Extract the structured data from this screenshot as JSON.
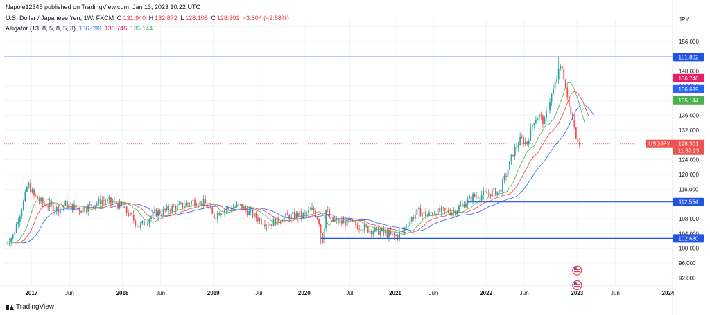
{
  "header": {
    "publisher": "Napole12345 published on TradingView.com, Jan 13, 2023 10:22 UTC",
    "symbol_line": "U.S. Dollar / Japanese Yen, 1W, FXCM",
    "ohlc": {
      "o_label": "O",
      "o": "131.940",
      "h_label": "H",
      "h": "132.872",
      "l_label": "L",
      "l": "128.105",
      "c_label": "C",
      "c": "128.301",
      "change": "−3.804 (−2.88%)"
    },
    "alligator_label": "Alligator (13, 8, 5, 8, 5, 3)",
    "alligator_values": [
      "136.699",
      "136.746",
      "135.144"
    ]
  },
  "footer": {
    "brand": "TradingView"
  },
  "colors": {
    "up": "#26a69a",
    "down": "#ef5350",
    "jaw": "#2962ff",
    "teeth": "#f23645",
    "lips": "#4caf50",
    "hline": "#1e53e5",
    "grid": "#f0f3fa"
  },
  "chart_data": {
    "type": "candlestick",
    "currency": "JPY",
    "y_ticks": [
      92,
      96,
      100,
      104,
      108,
      112,
      116,
      120,
      124,
      128,
      132,
      136,
      140,
      144,
      148,
      152,
      156,
      160
    ],
    "ylim": [
      90,
      162
    ],
    "x_ticks": [
      "2017",
      "Jun",
      "2018",
      "Jun",
      "2019",
      "Jul",
      "2020",
      "Jul",
      "2021",
      "Jun",
      "2022",
      "Jun",
      "2023",
      "Jun",
      "2024"
    ],
    "x_tick_dates": [
      2017.0,
      2017.42,
      2018.0,
      2018.42,
      2019.0,
      2019.5,
      2020.0,
      2020.5,
      2021.0,
      2021.42,
      2022.0,
      2022.42,
      2023.0,
      2023.42,
      2024.0
    ],
    "xlim": [
      2016.7,
      2024.05
    ],
    "price_path": [
      [
        2016.72,
        101.5
      ],
      [
        2016.8,
        103.5
      ],
      [
        2016.86,
        108.5
      ],
      [
        2016.92,
        113.0
      ],
      [
        2016.96,
        117.5
      ],
      [
        2017.02,
        114.5
      ],
      [
        2017.1,
        112.5
      ],
      [
        2017.2,
        111.5
      ],
      [
        2017.3,
        110.5
      ],
      [
        2017.38,
        112.0
      ],
      [
        2017.48,
        111.0
      ],
      [
        2017.55,
        110.5
      ],
      [
        2017.65,
        111.5
      ],
      [
        2017.78,
        113.0
      ],
      [
        2017.9,
        112.5
      ],
      [
        2018.0,
        111.0
      ],
      [
        2018.1,
        108.5
      ],
      [
        2018.18,
        106.0
      ],
      [
        2018.25,
        107.0
      ],
      [
        2018.35,
        109.5
      ],
      [
        2018.45,
        110.0
      ],
      [
        2018.55,
        111.0
      ],
      [
        2018.65,
        111.5
      ],
      [
        2018.78,
        112.8
      ],
      [
        2018.92,
        112.0
      ],
      [
        2019.0,
        108.5
      ],
      [
        2019.1,
        110.5
      ],
      [
        2019.2,
        111.0
      ],
      [
        2019.3,
        111.5
      ],
      [
        2019.4,
        109.5
      ],
      [
        2019.5,
        108.0
      ],
      [
        2019.6,
        106.5
      ],
      [
        2019.7,
        107.5
      ],
      [
        2019.8,
        108.5
      ],
      [
        2019.92,
        109.0
      ],
      [
        2020.0,
        109.0
      ],
      [
        2020.1,
        110.5
      ],
      [
        2020.16,
        107.5
      ],
      [
        2020.2,
        102.0
      ],
      [
        2020.24,
        110.5
      ],
      [
        2020.3,
        107.5
      ],
      [
        2020.4,
        107.0
      ],
      [
        2020.5,
        107.0
      ],
      [
        2020.6,
        106.0
      ],
      [
        2020.72,
        105.0
      ],
      [
        2020.85,
        104.5
      ],
      [
        2020.95,
        103.5
      ],
      [
        2021.0,
        103.2
      ],
      [
        2021.08,
        104.5
      ],
      [
        2021.16,
        107.5
      ],
      [
        2021.25,
        110.0
      ],
      [
        2021.35,
        109.0
      ],
      [
        2021.45,
        110.0
      ],
      [
        2021.55,
        110.0
      ],
      [
        2021.65,
        110.0
      ],
      [
        2021.75,
        112.0
      ],
      [
        2021.85,
        114.0
      ],
      [
        2021.95,
        114.5
      ],
      [
        2022.05,
        115.0
      ],
      [
        2022.15,
        115.5
      ],
      [
        2022.22,
        120.0
      ],
      [
        2022.3,
        126.0
      ],
      [
        2022.38,
        129.5
      ],
      [
        2022.45,
        128.5
      ],
      [
        2022.52,
        134.5
      ],
      [
        2022.58,
        136.0
      ],
      [
        2022.64,
        134.0
      ],
      [
        2022.7,
        140.0
      ],
      [
        2022.76,
        144.5
      ],
      [
        2022.8,
        148.0
      ],
      [
        2022.83,
        149.5
      ],
      [
        2022.86,
        146.0
      ],
      [
        2022.9,
        139.0
      ],
      [
        2022.95,
        136.0
      ],
      [
        2022.98,
        131.0
      ],
      [
        2023.03,
        128.3
      ]
    ],
    "spike_high": {
      "date": 2022.8,
      "value": 151.95
    },
    "spike_low": {
      "date": 2020.18,
      "value": 101.2
    },
    "alligator": {
      "jaw": {
        "name": "136.699",
        "shift_years": 0.16,
        "smooth": 13
      },
      "teeth": {
        "name": "136.746",
        "shift_years": 0.1,
        "smooth": 8
      },
      "lips": {
        "name": "135.144",
        "shift_years": 0.06,
        "smooth": 5
      }
    },
    "horizontal_lines": [
      {
        "value": 151.802,
        "label": "151.802",
        "from": 2016.7,
        "to": 2024.05
      },
      {
        "value": 112.554,
        "label": "112.554",
        "from": 2021.8,
        "to": 2024.05
      },
      {
        "value": 102.68,
        "label": "102.680",
        "from": 2020.18,
        "to": 2024.05
      }
    ],
    "price_labels": [
      {
        "value": 136.746,
        "text": "136.746",
        "color": "#e91e63"
      },
      {
        "value": 136.699,
        "text": "136.699",
        "color": "#2962ff"
      },
      {
        "value": 135.144,
        "text": "135.144",
        "color": "#4caf50"
      },
      {
        "value": 128.301,
        "text": "128.301",
        "color": "#ef5350"
      }
    ],
    "current_price": {
      "symbol": "USDJPY",
      "value": 128.301,
      "text": "128.301",
      "countdown": "11:37:23"
    },
    "event_icons": [
      {
        "date": 2023.0,
        "value": 94.0
      },
      {
        "date": 2023.0,
        "value": 90.0
      }
    ]
  }
}
